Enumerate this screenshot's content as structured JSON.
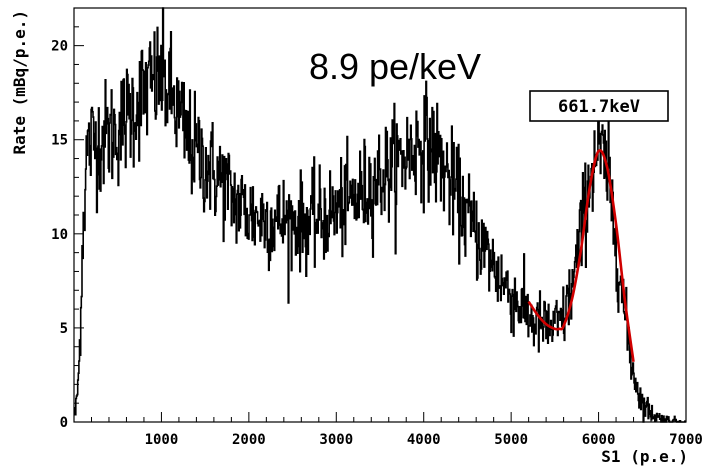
{
  "chart_data": {
    "type": "line",
    "title": "",
    "xlabel": "S1 (p.e.)",
    "ylabel": "Rate (mBq/p.e.)",
    "xlim": [
      0,
      7000
    ],
    "ylim": [
      0,
      22
    ],
    "x_ticks": [
      1000,
      2000,
      3000,
      4000,
      5000,
      6000,
      7000
    ],
    "y_ticks": [
      0,
      5,
      10,
      15,
      20
    ],
    "annotations": [
      "8.9 pe/keV",
      "661.7keV"
    ],
    "grid": false,
    "series": [
      {
        "style": "histogram",
        "color": "#000000",
        "x": [
          20,
          60,
          100,
          150,
          200,
          250,
          300,
          400,
          500,
          600,
          700,
          800,
          900,
          1000,
          1100,
          1200,
          1300,
          1400,
          1500,
          1600,
          1700,
          1800,
          1900,
          2000,
          2100,
          2200,
          2300,
          2400,
          2500,
          2600,
          2700,
          2800,
          2900,
          3000,
          3100,
          3200,
          3300,
          3400,
          3500,
          3600,
          3700,
          3800,
          3900,
          4000,
          4100,
          4200,
          4300,
          4400,
          4500,
          4600,
          4700,
          4800,
          4900,
          5000,
          5100,
          5200,
          5300,
          5400,
          5500,
          5600,
          5700,
          5800,
          5900,
          6000,
          6100,
          6200,
          6300,
          6400,
          6500,
          6600,
          6700,
          6800,
          6900,
          7000
        ],
        "values": [
          0.5,
          3.0,
          10.0,
          14.5,
          14.8,
          15.0,
          15.0,
          15.3,
          15.5,
          16.2,
          16.8,
          17.5,
          18.0,
          18.2,
          17.5,
          16.2,
          15.0,
          14.3,
          13.8,
          13.2,
          12.8,
          12.0,
          11.5,
          11.1,
          10.9,
          10.8,
          10.7,
          10.7,
          10.6,
          10.6,
          10.6,
          10.8,
          11.0,
          11.2,
          11.5,
          11.8,
          12.2,
          12.6,
          13.0,
          13.4,
          13.8,
          14.2,
          14.6,
          15.0,
          14.6,
          13.8,
          12.8,
          11.8,
          10.9,
          10.0,
          9.2,
          8.3,
          7.5,
          6.8,
          6.2,
          5.6,
          5.2,
          5.0,
          5.0,
          5.5,
          7.2,
          10.0,
          13.0,
          14.6,
          13.2,
          9.8,
          5.6,
          2.6,
          1.0,
          0.5,
          0.2,
          0.1,
          0.05,
          0.0
        ]
      },
      {
        "style": "fit",
        "color": "#d00000",
        "x": [
          5200,
          5300,
          5400,
          5500,
          5550,
          5600,
          5700,
          5800,
          5900,
          6000,
          6100,
          6200,
          6300,
          6400
        ],
        "values": [
          6.4,
          5.7,
          5.2,
          4.95,
          4.95,
          5.1,
          6.6,
          9.2,
          12.5,
          14.4,
          13.5,
          10.5,
          6.5,
          3.2
        ]
      }
    ]
  }
}
